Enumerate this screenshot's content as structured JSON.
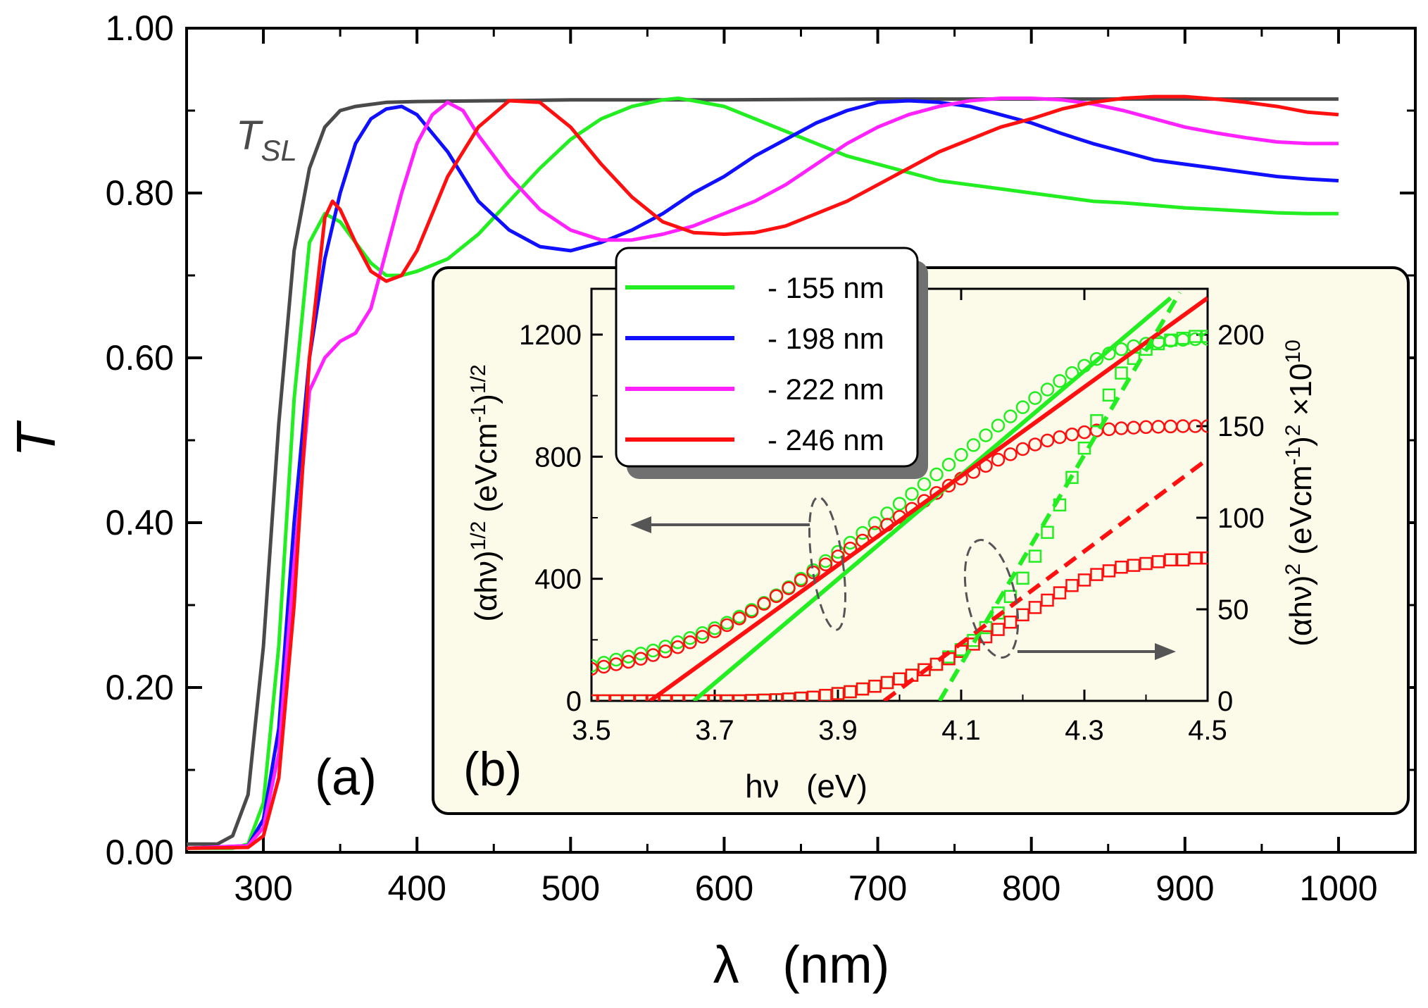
{
  "colors": {
    "green": "#22ee22",
    "blue": "#1010ff",
    "magenta": "#ff22ff",
    "red": "#ff1010",
    "gray": "#4a4a4a",
    "inset_bg": "#fcfbe9"
  },
  "chart_data": [
    {
      "id": "a",
      "type": "line",
      "panel_label": "(a)",
      "xlabel": "λ   (nm)",
      "ylabel": "T",
      "xlim": [
        250,
        1050
      ],
      "ylim": [
        0,
        1
      ],
      "xticks": [
        300,
        400,
        500,
        600,
        700,
        800,
        900,
        1000
      ],
      "yticks": [
        0,
        0.2,
        0.4,
        0.6,
        0.8,
        1.0
      ],
      "xtick_labels": [
        "300",
        "400",
        "500",
        "600",
        "700",
        "800",
        "900",
        "1000"
      ],
      "ytick_labels": [
        "0.00",
        "0.20",
        "0.40",
        "0.60",
        "0.80",
        "1.00"
      ],
      "substrate_label": {
        "main": "T",
        "sub": "SL"
      },
      "series": [
        {
          "name": "T_SL",
          "color": "#4a4a4a",
          "x": [
            250,
            270,
            280,
            290,
            300,
            310,
            320,
            330,
            340,
            350,
            360,
            380,
            400,
            450,
            500,
            600,
            700,
            800,
            900,
            1000
          ],
          "y": [
            0.01,
            0.01,
            0.02,
            0.07,
            0.25,
            0.52,
            0.73,
            0.83,
            0.88,
            0.9,
            0.905,
            0.91,
            0.911,
            0.912,
            0.913,
            0.913,
            0.914,
            0.914,
            0.914,
            0.914
          ]
        },
        {
          "name": "155 nm",
          "color": "#22ee22",
          "x": [
            250,
            280,
            290,
            300,
            310,
            320,
            330,
            340,
            350,
            360,
            370,
            380,
            390,
            400,
            420,
            440,
            460,
            480,
            500,
            520,
            540,
            560,
            570,
            580,
            600,
            620,
            640,
            660,
            680,
            700,
            720,
            740,
            760,
            780,
            800,
            820,
            840,
            860,
            880,
            900,
            920,
            940,
            960,
            980,
            1000
          ],
          "y": [
            0.005,
            0.005,
            0.01,
            0.06,
            0.25,
            0.55,
            0.74,
            0.775,
            0.765,
            0.74,
            0.715,
            0.7,
            0.7,
            0.705,
            0.72,
            0.75,
            0.79,
            0.83,
            0.865,
            0.89,
            0.905,
            0.913,
            0.915,
            0.912,
            0.905,
            0.89,
            0.875,
            0.86,
            0.845,
            0.835,
            0.825,
            0.815,
            0.81,
            0.805,
            0.8,
            0.795,
            0.79,
            0.788,
            0.785,
            0.782,
            0.78,
            0.778,
            0.776,
            0.775,
            0.775
          ]
        },
        {
          "name": "198 nm",
          "color": "#1010ff",
          "x": [
            250,
            290,
            300,
            310,
            320,
            330,
            340,
            350,
            360,
            370,
            380,
            390,
            400,
            420,
            440,
            460,
            480,
            500,
            520,
            540,
            560,
            580,
            600,
            620,
            640,
            660,
            680,
            700,
            720,
            740,
            760,
            780,
            800,
            820,
            840,
            860,
            880,
            900,
            920,
            940,
            960,
            980,
            1000
          ],
          "y": [
            0.005,
            0.008,
            0.04,
            0.15,
            0.4,
            0.6,
            0.72,
            0.8,
            0.86,
            0.89,
            0.902,
            0.905,
            0.895,
            0.85,
            0.79,
            0.755,
            0.735,
            0.73,
            0.74,
            0.755,
            0.775,
            0.8,
            0.82,
            0.845,
            0.865,
            0.885,
            0.9,
            0.91,
            0.912,
            0.91,
            0.905,
            0.895,
            0.885,
            0.872,
            0.86,
            0.85,
            0.84,
            0.835,
            0.83,
            0.825,
            0.82,
            0.817,
            0.815
          ]
        },
        {
          "name": "222 nm",
          "color": "#ff22ff",
          "x": [
            250,
            290,
            300,
            310,
            320,
            330,
            340,
            350,
            360,
            370,
            380,
            390,
            400,
            410,
            420,
            430,
            440,
            460,
            480,
            500,
            520,
            540,
            560,
            580,
            600,
            620,
            640,
            660,
            680,
            700,
            720,
            740,
            760,
            780,
            800,
            820,
            840,
            860,
            880,
            900,
            920,
            940,
            960,
            980,
            1000
          ],
          "y": [
            0.005,
            0.008,
            0.03,
            0.12,
            0.35,
            0.56,
            0.6,
            0.62,
            0.63,
            0.66,
            0.73,
            0.8,
            0.86,
            0.895,
            0.91,
            0.9,
            0.87,
            0.82,
            0.78,
            0.755,
            0.743,
            0.743,
            0.75,
            0.76,
            0.775,
            0.79,
            0.81,
            0.835,
            0.86,
            0.88,
            0.895,
            0.905,
            0.912,
            0.915,
            0.915,
            0.913,
            0.908,
            0.9,
            0.89,
            0.88,
            0.873,
            0.867,
            0.862,
            0.86,
            0.86
          ]
        },
        {
          "name": "246 nm",
          "color": "#ff1010",
          "x": [
            250,
            290,
            300,
            310,
            320,
            330,
            340,
            345,
            350,
            360,
            370,
            380,
            390,
            400,
            420,
            440,
            460,
            480,
            500,
            520,
            540,
            560,
            580,
            600,
            620,
            640,
            660,
            680,
            700,
            720,
            740,
            760,
            780,
            800,
            820,
            840,
            860,
            880,
            900,
            920,
            940,
            960,
            980,
            1000
          ],
          "y": [
            0.005,
            0.006,
            0.02,
            0.09,
            0.3,
            0.6,
            0.77,
            0.79,
            0.78,
            0.74,
            0.705,
            0.693,
            0.7,
            0.73,
            0.82,
            0.88,
            0.912,
            0.91,
            0.88,
            0.835,
            0.795,
            0.765,
            0.752,
            0.75,
            0.752,
            0.76,
            0.775,
            0.79,
            0.81,
            0.83,
            0.85,
            0.865,
            0.88,
            0.89,
            0.902,
            0.91,
            0.915,
            0.917,
            0.917,
            0.914,
            0.91,
            0.905,
            0.898,
            0.895
          ]
        }
      ]
    },
    {
      "id": "b",
      "type": "scatter",
      "panel_label": "(b)",
      "xlabel": "hν   (eV)",
      "ylabel_left": "(αhν)^1/2  (eVcm^-1)^1/2",
      "ylabel_right": "(αhν)^2  (eVcm^-1)^2 ×10^10",
      "xlim": [
        3.5,
        4.5
      ],
      "ylim_left": [
        0,
        1350
      ],
      "ylim_right": [
        0,
        225
      ],
      "xticks": [
        3.5,
        3.7,
        3.9,
        4.1,
        4.3,
        4.5
      ],
      "xtick_labels": [
        "3.5",
        "3.7",
        "3.9",
        "4.1",
        "4.3",
        "4.5"
      ],
      "yticks_left": [
        0,
        400,
        800,
        1200
      ],
      "yticks_left_labels": [
        "0",
        "400",
        "800",
        "1200"
      ],
      "yticks_right": [
        0,
        50,
        100,
        150,
        200
      ],
      "yticks_right_labels": [
        "0",
        "50",
        "100",
        "150",
        "200"
      ],
      "legend": [
        "- 155 nm",
        "- 198 nm",
        "- 222 nm",
        "- 246 nm"
      ],
      "legend_colors": [
        "#22ee22",
        "#1010ff",
        "#ff22ff",
        "#ff1010"
      ],
      "legend_position": "top-left",
      "series": [
        {
          "name": "155 nm sqrt",
          "axis": "left",
          "marker": "circle",
          "color": "#22ee22",
          "x": [
            3.5,
            3.52,
            3.54,
            3.56,
            3.58,
            3.6,
            3.62,
            3.64,
            3.66,
            3.68,
            3.7,
            3.72,
            3.74,
            3.76,
            3.78,
            3.8,
            3.82,
            3.84,
            3.86,
            3.88,
            3.9,
            3.92,
            3.94,
            3.96,
            3.98,
            4.0,
            4.02,
            4.04,
            4.06,
            4.08,
            4.1,
            4.12,
            4.14,
            4.16,
            4.18,
            4.2,
            4.22,
            4.24,
            4.26,
            4.28,
            4.3,
            4.32,
            4.34,
            4.36,
            4.38,
            4.4,
            4.42,
            4.44,
            4.46,
            4.48,
            4.5
          ],
          "y": [
            115,
            125,
            135,
            145,
            155,
            165,
            178,
            192,
            206,
            222,
            238,
            256,
            276,
            298,
            321,
            346,
            372,
            400,
            428,
            458,
            488,
            518,
            550,
            582,
            614,
            646,
            678,
            710,
            742,
            774,
            806,
            838,
            870,
            902,
            932,
            962,
            992,
            1020,
            1048,
            1074,
            1098,
            1120,
            1138,
            1152,
            1162,
            1170,
            1176,
            1180,
            1183,
            1185,
            1186
          ]
        },
        {
          "name": "246 nm sqrt",
          "axis": "left",
          "marker": "circle",
          "color": "#ff1010",
          "x": [
            3.5,
            3.52,
            3.54,
            3.56,
            3.58,
            3.6,
            3.62,
            3.64,
            3.66,
            3.68,
            3.7,
            3.72,
            3.74,
            3.76,
            3.78,
            3.8,
            3.82,
            3.84,
            3.86,
            3.88,
            3.9,
            3.92,
            3.94,
            3.96,
            3.98,
            4.0,
            4.02,
            4.04,
            4.06,
            4.08,
            4.1,
            4.12,
            4.14,
            4.16,
            4.18,
            4.2,
            4.22,
            4.24,
            4.26,
            4.28,
            4.3,
            4.32,
            4.34,
            4.36,
            4.38,
            4.4,
            4.42,
            4.44,
            4.46,
            4.48,
            4.5
          ],
          "y": [
            105,
            112,
            120,
            128,
            138,
            150,
            162,
            176,
            192,
            210,
            228,
            248,
            270,
            293,
            318,
            343,
            369,
            395,
            421,
            447,
            473,
            499,
            525,
            551,
            577,
            603,
            629,
            655,
            681,
            705,
            728,
            750,
            770,
            790,
            808,
            825,
            840,
            853,
            864,
            873,
            880,
            886,
            890,
            893,
            895,
            897,
            898,
            899,
            900,
            900,
            900
          ]
        },
        {
          "name": "155 nm square",
          "axis": "right",
          "marker": "square",
          "color": "#22ee22",
          "x": [
            3.5,
            3.52,
            3.54,
            3.56,
            3.58,
            3.6,
            3.62,
            3.64,
            3.66,
            3.68,
            3.7,
            3.72,
            3.74,
            3.76,
            3.78,
            3.8,
            3.82,
            3.84,
            3.86,
            3.88,
            3.9,
            3.92,
            3.94,
            3.96,
            3.98,
            4.0,
            4.02,
            4.04,
            4.06,
            4.08,
            4.1,
            4.12,
            4.14,
            4.16,
            4.18,
            4.2,
            4.22,
            4.24,
            4.26,
            4.28,
            4.3,
            4.32,
            4.34,
            4.36,
            4.38,
            4.4,
            4.42,
            4.44,
            4.46,
            4.48,
            4.5
          ],
          "y": [
            0,
            0,
            0,
            0,
            0,
            0,
            0,
            0,
            0,
            0,
            0,
            0,
            0,
            0.2,
            0.4,
            0.6,
            1,
            1.5,
            2,
            3,
            4,
            5,
            6.5,
            8,
            10,
            12,
            14,
            17,
            20,
            24,
            28,
            33,
            40,
            48,
            57,
            67,
            79,
            92,
            107,
            122,
            138,
            153,
            167,
            179,
            187,
            192,
            195,
            197,
            198,
            199,
            199
          ]
        },
        {
          "name": "246 nm square",
          "axis": "right",
          "marker": "square",
          "color": "#ff1010",
          "x": [
            3.5,
            3.52,
            3.54,
            3.56,
            3.58,
            3.6,
            3.62,
            3.64,
            3.66,
            3.68,
            3.7,
            3.72,
            3.74,
            3.76,
            3.78,
            3.8,
            3.82,
            3.84,
            3.86,
            3.88,
            3.9,
            3.92,
            3.94,
            3.96,
            3.98,
            4.0,
            4.02,
            4.04,
            4.06,
            4.08,
            4.1,
            4.12,
            4.14,
            4.16,
            4.18,
            4.2,
            4.22,
            4.24,
            4.26,
            4.28,
            4.3,
            4.32,
            4.34,
            4.36,
            4.38,
            4.4,
            4.42,
            4.44,
            4.46,
            4.48,
            4.5
          ],
          "y": [
            0,
            0,
            0,
            0,
            0,
            0,
            0,
            0,
            0,
            0,
            0,
            0,
            0,
            0.2,
            0.4,
            0.6,
            1,
            1.5,
            2,
            3,
            4,
            5,
            6.5,
            8,
            10,
            12,
            14,
            17,
            20,
            23,
            27,
            31,
            35,
            39,
            43,
            47,
            51,
            55,
            59,
            63,
            66,
            69,
            71,
            73,
            74,
            75,
            76,
            77,
            77,
            78,
            78
          ]
        },
        {
          "name": "155 nm sqrt fit",
          "axis": "left",
          "type": "fit",
          "style": "solid",
          "color": "#22ee22",
          "x": [
            3.666,
            4.44
          ],
          "y": [
            0,
            1320
          ]
        },
        {
          "name": "246 nm sqrt fit",
          "axis": "left",
          "type": "fit",
          "style": "solid",
          "color": "#ff1010",
          "x": [
            3.595,
            4.5
          ],
          "y": [
            0,
            1320
          ]
        },
        {
          "name": "155 nm square fit",
          "axis": "right",
          "type": "fit",
          "style": "dashed",
          "color": "#22ee22",
          "x": [
            4.065,
            4.455
          ],
          "y": [
            0,
            223
          ]
        },
        {
          "name": "246 nm square fit",
          "axis": "right",
          "type": "fit",
          "style": "dashed",
          "color": "#ff1010",
          "x": [
            3.975,
            4.5
          ],
          "y": [
            0,
            132
          ]
        }
      ]
    }
  ]
}
